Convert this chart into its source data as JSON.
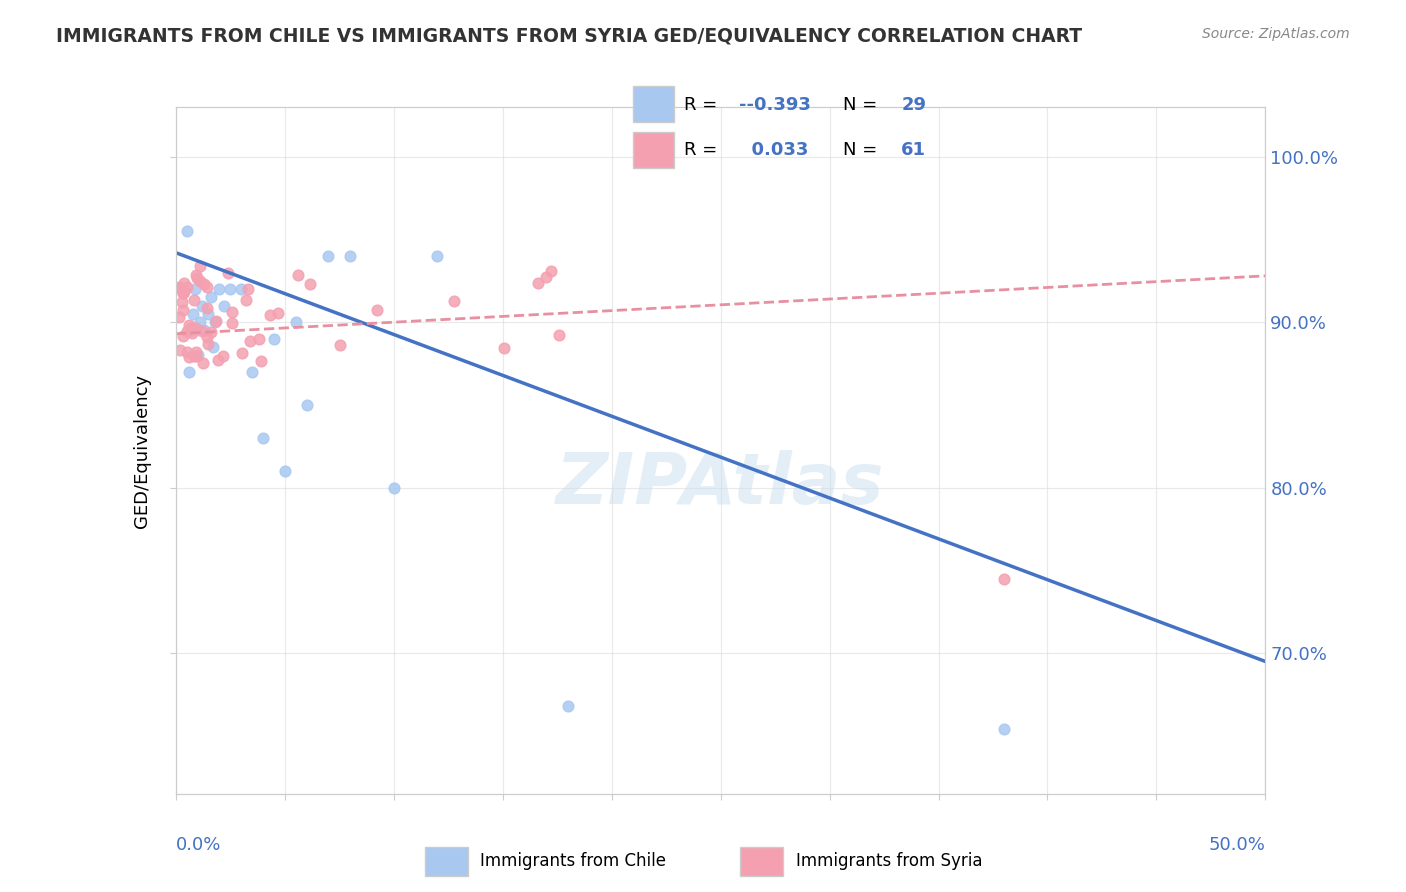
{
  "title": "IMMIGRANTS FROM CHILE VS IMMIGRANTS FROM SYRIA GED/EQUIVALENCY CORRELATION CHART",
  "source": "Source: ZipAtlas.com",
  "ylabel": "GED/Equivalency",
  "ytick_vals": [
    0.7,
    0.8,
    0.9,
    1.0
  ],
  "xlim": [
    0.0,
    0.5
  ],
  "ylim": [
    0.615,
    1.03
  ],
  "chile_color": "#a8c8f0",
  "syria_color": "#f4a0b0",
  "chile_line_color": "#4472c4",
  "syria_line_color": "#e88fa0",
  "watermark": "ZIPAtlas",
  "chile_scatter_x": [
    0.005,
    0.006,
    0.007,
    0.008,
    0.009,
    0.01,
    0.011,
    0.012,
    0.013,
    0.015,
    0.016,
    0.017,
    0.018,
    0.02,
    0.022,
    0.025,
    0.03,
    0.035,
    0.04,
    0.045,
    0.05,
    0.055,
    0.06,
    0.07,
    0.08,
    0.1,
    0.12,
    0.18,
    0.38
  ],
  "chile_scatter_y": [
    0.955,
    0.87,
    0.895,
    0.905,
    0.92,
    0.88,
    0.9,
    0.91,
    0.895,
    0.905,
    0.915,
    0.885,
    0.9,
    0.92,
    0.91,
    0.92,
    0.92,
    0.87,
    0.83,
    0.89,
    0.81,
    0.9,
    0.85,
    0.94,
    0.94,
    0.8,
    0.94,
    0.668,
    0.654
  ],
  "chile_trend_x": [
    0.0,
    0.5
  ],
  "chile_trend_y": [
    0.942,
    0.695
  ],
  "syria_trend_x": [
    0.0,
    0.5
  ],
  "syria_trend_y": [
    0.893,
    0.928
  ],
  "r_chile": "-0.393",
  "n_chile": "29",
  "r_syria": "0.033",
  "n_syria": "61"
}
